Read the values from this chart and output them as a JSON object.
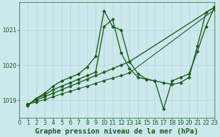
{
  "title": "Graphe pression niveau de la mer (hPa)",
  "bg_color": "#cce8ed",
  "line_color": "#1a5c1a",
  "xlim": [
    0,
    23
  ],
  "ylim": [
    1018.5,
    1021.8
  ],
  "yticks": [
    1019,
    1020,
    1021
  ],
  "xticks": [
    0,
    1,
    2,
    3,
    4,
    5,
    6,
    7,
    8,
    9,
    10,
    11,
    12,
    13,
    14,
    15,
    16,
    17,
    18,
    19,
    20,
    21,
    22,
    23
  ],
  "lines": [
    {
      "x": [
        1,
        2,
        3,
        4,
        5,
        6,
        7,
        8,
        9,
        10,
        11,
        12,
        13,
        14,
        15,
        16,
        17,
        18,
        19,
        20,
        21,
        22,
        23
      ],
      "y": [
        1018.85,
        1019.05,
        1019.2,
        1019.4,
        1019.55,
        1019.65,
        1019.75,
        1019.95,
        1020.25,
        1021.55,
        1021.1,
        1021.0,
        1020.1,
        1019.75,
        1019.6,
        1019.55,
        1019.5,
        1019.45,
        1019.5,
        1019.65,
        1020.55,
        1021.5,
        1021.65
      ],
      "marker": "D",
      "markersize": 2.5,
      "linewidth": 1.0
    },
    {
      "x": [
        1,
        2,
        3,
        4,
        5,
        6,
        7,
        8,
        9,
        10,
        11,
        12,
        13,
        14,
        15,
        16,
        17,
        18,
        19,
        20,
        21,
        22,
        23
      ],
      "y": [
        1018.85,
        1019.05,
        1019.15,
        1019.3,
        1019.4,
        1019.5,
        1019.6,
        1019.7,
        1019.8,
        1021.1,
        1021.3,
        1020.35,
        1019.9,
        1019.65,
        1019.6,
        1019.55,
        1018.75,
        1019.55,
        1019.65,
        1019.75,
        1020.4,
        1021.1,
        1021.65
      ],
      "marker": "D",
      "markersize": 2.5,
      "linewidth": 1.0
    },
    {
      "x": [
        1,
        2,
        3,
        4,
        5,
        6,
        7,
        8,
        9,
        10,
        11,
        12,
        13,
        23
      ],
      "y": [
        1018.88,
        1019.0,
        1019.1,
        1019.2,
        1019.3,
        1019.4,
        1019.5,
        1019.6,
        1019.7,
        1019.8,
        1019.9,
        1020.0,
        1020.1,
        1021.65
      ],
      "marker": "D",
      "markersize": 2.5,
      "linewidth": 1.0
    },
    {
      "x": [
        1,
        2,
        3,
        4,
        5,
        6,
        7,
        8,
        9,
        10,
        11,
        12,
        13,
        23
      ],
      "y": [
        1018.88,
        1018.95,
        1019.02,
        1019.1,
        1019.18,
        1019.25,
        1019.33,
        1019.4,
        1019.48,
        1019.56,
        1019.63,
        1019.7,
        1019.78,
        1021.58
      ],
      "marker": "D",
      "markersize": 2.5,
      "linewidth": 0.8
    }
  ],
  "grid_color": "#aed4d8",
  "title_fontsize": 7.5,
  "tick_fontsize": 6.0
}
